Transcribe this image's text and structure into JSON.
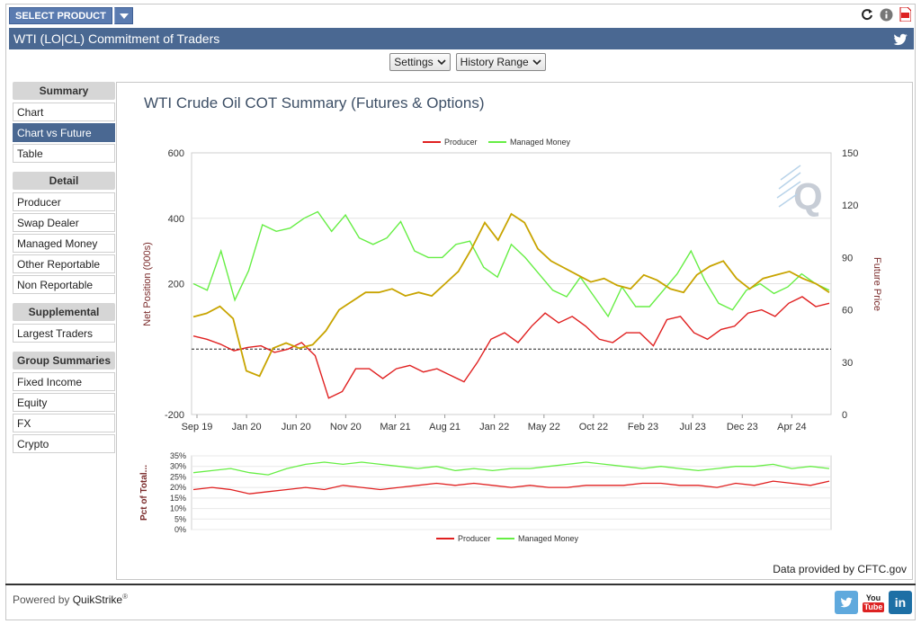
{
  "top": {
    "select_product": "SELECT PRODUCT"
  },
  "title": "WTI (LO|CL) Commitment of Traders",
  "toolbar": {
    "settings": "Settings",
    "history_range": "History Range"
  },
  "sidebar": {
    "summary_head": "Summary",
    "summary_items": [
      "Chart",
      "Chart vs Future",
      "Table"
    ],
    "detail_head": "Detail",
    "detail_items": [
      "Producer",
      "Swap Dealer",
      "Managed Money",
      "Other Reportable",
      "Non Reportable"
    ],
    "supplemental_head": "Supplemental",
    "supplemental_items": [
      "Largest Traders"
    ],
    "group_head": "Group Summaries",
    "group_items": [
      "Fixed Income",
      "Equity",
      "FX",
      "Crypto"
    ]
  },
  "credit_prefix": "Data provided by",
  "credit_link": "CFTC.gov",
  "footer": {
    "prefix": "Powered by",
    "brand": "QuikStrike",
    "reg": "®"
  },
  "colors": {
    "producer": "#e02020",
    "managed_money": "#66ee44",
    "future_price": "#c8a400",
    "header_bg": "#4a6892"
  },
  "chart_data": [
    {
      "type": "line",
      "title": "WTI Crude Oil COT Summary (Futures & Options)",
      "ylabel": "Net Position (000s)",
      "ylabel_right": "Future Price",
      "ylim": [
        -200,
        600
      ],
      "ylim_right": [
        0,
        150
      ],
      "yticks": [
        "600",
        "400",
        "200",
        "-200"
      ],
      "yticks_right": [
        "150",
        "120",
        "90",
        "60",
        "30",
        "0"
      ],
      "x_tick_labels": [
        "Sep 19",
        "Jan 20",
        "Jun 20",
        "Nov 20",
        "Mar 21",
        "Aug 21",
        "Jan 22",
        "May 22",
        "Oct 22",
        "Feb 23",
        "Jul 23",
        "Dec 23",
        "Apr 24"
      ],
      "legend": [
        "Producer",
        "Managed Money"
      ],
      "legend_position": "top",
      "series": [
        {
          "name": "Producer",
          "values": [
            40,
            30,
            15,
            -5,
            5,
            10,
            -10,
            0,
            20,
            -20,
            -150,
            -130,
            -60,
            -60,
            -90,
            -60,
            -50,
            -70,
            -60,
            -80,
            -100,
            -40,
            30,
            50,
            20,
            70,
            110,
            80,
            100,
            70,
            30,
            20,
            50,
            50,
            10,
            90,
            100,
            50,
            30,
            60,
            70,
            110,
            120,
            100,
            140,
            160,
            130,
            140
          ]
        },
        {
          "name": "Managed Money",
          "values": [
            200,
            180,
            300,
            150,
            240,
            380,
            360,
            370,
            400,
            420,
            360,
            410,
            340,
            320,
            340,
            390,
            300,
            280,
            280,
            320,
            330,
            250,
            220,
            320,
            280,
            230,
            180,
            160,
            220,
            160,
            100,
            190,
            130,
            130,
            180,
            230,
            300,
            210,
            140,
            120,
            180,
            200,
            170,
            190,
            230,
            200,
            180
          ]
        },
        {
          "name": "Future Price",
          "values": [
            56,
            58,
            62,
            55,
            25,
            22,
            38,
            41,
            38,
            40,
            48,
            60,
            65,
            70,
            70,
            72,
            68,
            70,
            68,
            75,
            82,
            95,
            110,
            100,
            115,
            110,
            95,
            88,
            84,
            80,
            76,
            78,
            74,
            72,
            80,
            77,
            72,
            70,
            80,
            85,
            88,
            78,
            72,
            78,
            80,
            82,
            78,
            75,
            70
          ]
        }
      ]
    },
    {
      "type": "line",
      "ylabel": "Pct of Total...",
      "ylim": [
        0,
        35
      ],
      "yticks": [
        "35%",
        "30%",
        "25%",
        "20%",
        "15%",
        "10%",
        "5%",
        "0%"
      ],
      "legend": [
        "Producer",
        "Managed Money"
      ],
      "legend_position": "bottom",
      "series": [
        {
          "name": "Producer",
          "values": [
            19,
            20,
            19,
            17,
            18,
            19,
            20,
            19,
            21,
            20,
            19,
            20,
            21,
            22,
            21,
            22,
            21,
            20,
            21,
            20,
            20,
            21,
            21,
            21,
            22,
            22,
            21,
            21,
            20,
            22,
            21,
            23,
            22,
            21,
            23
          ]
        },
        {
          "name": "Managed Money",
          "values": [
            27,
            28,
            29,
            27,
            26,
            29,
            31,
            32,
            31,
            32,
            31,
            30,
            29,
            30,
            28,
            29,
            28,
            29,
            29,
            30,
            31,
            32,
            31,
            30,
            29,
            30,
            29,
            28,
            29,
            30,
            30,
            31,
            29,
            30,
            29
          ]
        }
      ]
    }
  ]
}
